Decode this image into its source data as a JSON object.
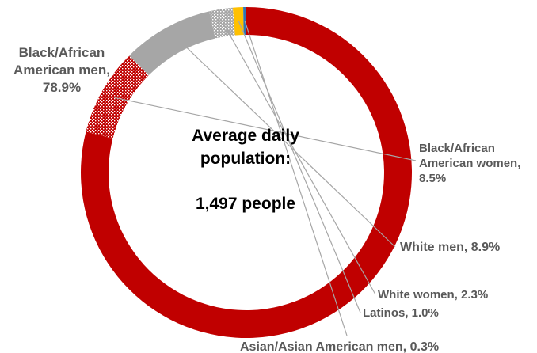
{
  "chart_data": {
    "type": "pie",
    "donut": true,
    "center_text": {
      "line1": "Average daily",
      "line2": "population:",
      "line3": "1,497 people"
    },
    "slices": [
      {
        "label_lines": [
          "Black/African",
          "American men,",
          "78.9%"
        ],
        "value": 78.9,
        "color": "#c00000",
        "pattern": "solid"
      },
      {
        "label_lines": [
          "Black/African",
          "American women,",
          "8.5%"
        ],
        "value": 8.5,
        "color": "#c00000",
        "pattern": "dots"
      },
      {
        "label_lines": [
          "White men, 8.9%"
        ],
        "value": 8.9,
        "color": "#a6a6a6",
        "pattern": "solid"
      },
      {
        "label_lines": [
          "White women, 2.3%"
        ],
        "value": 2.3,
        "color": "#a6a6a6",
        "pattern": "dots"
      },
      {
        "label_lines": [
          "Latinos, 1.0%"
        ],
        "value": 1.0,
        "color": "#ffc000",
        "pattern": "solid"
      },
      {
        "label_lines": [
          "Asian/Asian American men, 0.3%"
        ],
        "value": 0.3,
        "color": "#2e75b6",
        "pattern": "solid"
      }
    ]
  }
}
